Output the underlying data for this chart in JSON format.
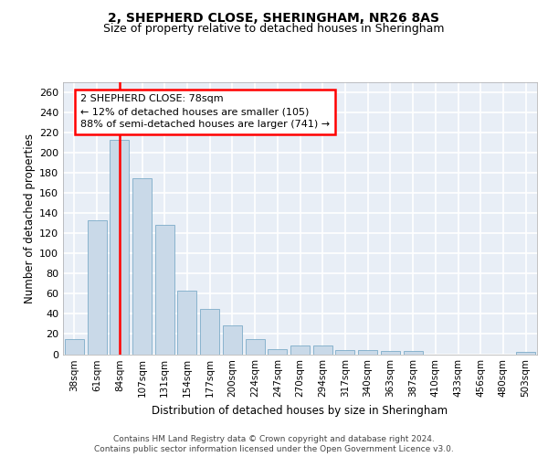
{
  "title1": "2, SHEPHERD CLOSE, SHERINGHAM, NR26 8AS",
  "title2": "Size of property relative to detached houses in Sheringham",
  "xlabel": "Distribution of detached houses by size in Sheringham",
  "ylabel": "Number of detached properties",
  "categories": [
    "38sqm",
    "61sqm",
    "84sqm",
    "107sqm",
    "131sqm",
    "154sqm",
    "177sqm",
    "200sqm",
    "224sqm",
    "247sqm",
    "270sqm",
    "294sqm",
    "317sqm",
    "340sqm",
    "363sqm",
    "387sqm",
    "410sqm",
    "433sqm",
    "456sqm",
    "480sqm",
    "503sqm"
  ],
  "values": [
    15,
    133,
    213,
    175,
    128,
    63,
    45,
    29,
    15,
    5,
    9,
    9,
    4,
    4,
    3,
    3,
    0,
    0,
    0,
    0,
    2
  ],
  "bar_color": "#c9d9e8",
  "bar_edge_color": "#7dacc8",
  "redline_index": 2,
  "annotation_text": "2 SHEPHERD CLOSE: 78sqm\n← 12% of detached houses are smaller (105)\n88% of semi-detached houses are larger (741) →",
  "annotation_fontsize": 8.0,
  "background_color": "#e8eef6",
  "grid_color": "#ffffff",
  "footer1": "Contains HM Land Registry data © Crown copyright and database right 2024.",
  "footer2": "Contains public sector information licensed under the Open Government Licence v3.0.",
  "ylim": [
    0,
    270
  ],
  "yticks": [
    0,
    20,
    40,
    60,
    80,
    100,
    120,
    140,
    160,
    180,
    200,
    220,
    240,
    260
  ]
}
